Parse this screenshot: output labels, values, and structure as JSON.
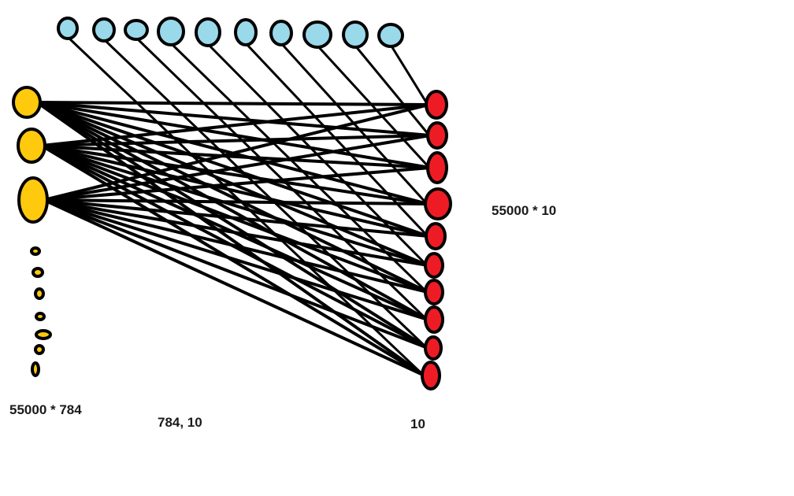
{
  "diagram": {
    "labels": {
      "input_shape": "55000 * 784",
      "weight_shape": "784, 10",
      "output_count": "10",
      "output_shape": "55000 * 10"
    },
    "colors": {
      "input": "#ffc90e",
      "bias": "#99d9ea",
      "output": "#ed1c24",
      "edge": "#000000"
    },
    "input_nodes_large": 3,
    "input_nodes_small": 7,
    "bias_nodes": 10,
    "output_nodes": 10
  }
}
